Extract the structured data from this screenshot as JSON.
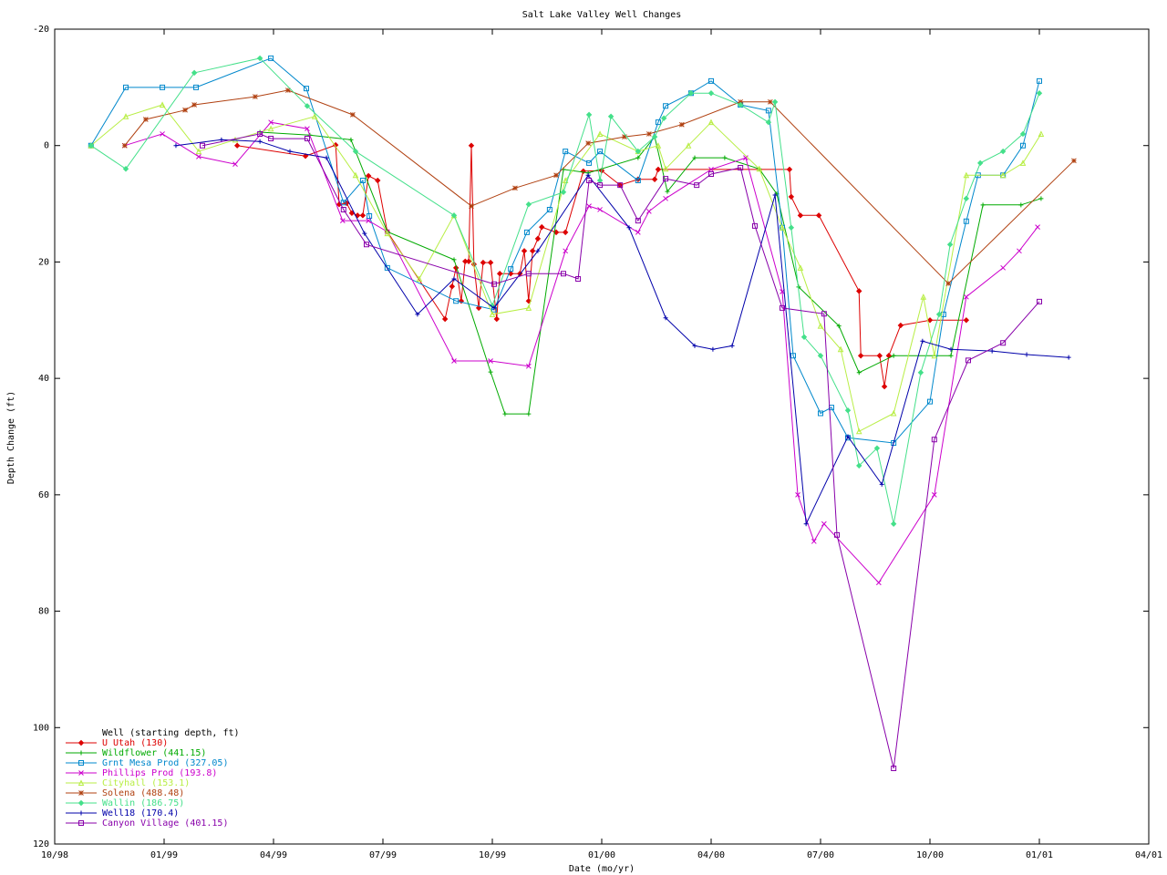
{
  "chart_data": {
    "type": "line",
    "title": "Salt Lake Valley Well Changes",
    "x_label": "Date (mo/yr)",
    "y_label": "Depth Change (ft)",
    "legend_title": "Well (starting depth, ft)",
    "legend_position": "lower-left",
    "xlim": [
      1998.75,
      2001.25
    ],
    "xticks": [
      {
        "value": 1998.75,
        "label": "10/98"
      },
      {
        "value": 1999.0,
        "label": "01/99"
      },
      {
        "value": 1999.25,
        "label": "04/99"
      },
      {
        "value": 1999.5,
        "label": "07/99"
      },
      {
        "value": 1999.75,
        "label": "10/99"
      },
      {
        "value": 2000.0,
        "label": "01/00"
      },
      {
        "value": 2000.25,
        "label": "04/00"
      },
      {
        "value": 2000.5,
        "label": "07/00"
      },
      {
        "value": 2000.75,
        "label": "10/00"
      },
      {
        "value": 2001.0,
        "label": "01/01"
      },
      {
        "value": 2001.25,
        "label": "04/01"
      }
    ],
    "ylim": [
      -20,
      120
    ],
    "y_reversed": true,
    "yticks": [
      -20,
      0,
      20,
      40,
      60,
      80,
      100,
      120
    ],
    "grid": false,
    "series": [
      {
        "name": "U Utah (130)",
        "color": "#dd0000",
        "marker": "diamond",
        "x": [
          1999.167,
          1999.323,
          1999.392,
          1999.4,
          1999.417,
          1999.429,
          1999.442,
          1999.454,
          1999.467,
          1999.488,
          1999.51,
          1999.642,
          1999.658,
          1999.667,
          1999.679,
          1999.688,
          1999.696,
          1999.702,
          1999.708,
          1999.719,
          1999.729,
          1999.746,
          1999.76,
          1999.767,
          1999.792,
          1999.813,
          1999.823,
          1999.833,
          1999.842,
          1999.854,
          1999.863,
          1999.896,
          1999.917,
          1999.958,
          2000.0,
          2000.042,
          2000.083,
          2000.121,
          2000.129,
          2000.429,
          2000.433,
          2000.454,
          2000.496,
          2000.588,
          2000.592,
          2000.635,
          2000.646,
          2000.656,
          2000.683,
          2000.75,
          2000.833
        ],
        "values": [
          0.0,
          1.8,
          -0.1,
          10.1,
          9.9,
          11.6,
          12.0,
          12.0,
          5.2,
          6.0,
          14.8,
          29.8,
          24.2,
          21.0,
          26.7,
          19.9,
          19.9,
          0.0,
          20.4,
          27.9,
          20.1,
          20.1,
          29.8,
          22.0,
          22.0,
          22.0,
          18.1,
          26.7,
          18.1,
          16.0,
          14.0,
          14.9,
          14.9,
          4.4,
          4.3,
          6.8,
          5.8,
          5.8,
          4.1,
          4.1,
          8.8,
          12.0,
          12.0,
          25.0,
          36.1,
          36.1,
          41.4,
          36.1,
          30.9,
          30.0,
          30.0
        ]
      },
      {
        "name": "Wildflower (441.15)",
        "color": "#00aa00",
        "marker": "plus",
        "x": [
          1999.219,
          1999.333,
          1999.427,
          1999.51,
          1999.6625,
          1999.746,
          1999.779,
          1999.833,
          1999.9125,
          1999.969,
          2000.083,
          2000.121,
          2000.15,
          2000.2125,
          2000.281,
          2000.36,
          2000.4,
          2000.45,
          2000.542,
          2000.588,
          2000.667,
          2000.798,
          2000.871,
          2000.958,
          2001.004
        ],
        "values": [
          -2.3,
          -1.8,
          -1.0,
          14.8,
          19.6,
          38.9,
          46.1,
          46.1,
          4.1,
          4.7,
          2.1,
          -1.5,
          7.9,
          2.1,
          2.1,
          4.0,
          8.3,
          24.3,
          31.0,
          39.0,
          36.1,
          36.1,
          10.2,
          10.2,
          9.1
        ]
      },
      {
        "name": "Grnt Mesa Prod (327.05)",
        "color": "#0088cc",
        "marker": "square",
        "x": [
          1998.833,
          1998.9125,
          1998.996,
          1999.073,
          1999.244,
          1999.325,
          1999.41,
          1999.454,
          1999.469,
          1999.51,
          1999.667,
          1999.754,
          1999.792,
          1999.829,
          1999.881,
          1999.917,
          1999.971,
          1999.996,
          2000.083,
          2000.129,
          2000.146,
          2000.204,
          2000.25,
          2000.317,
          2000.381,
          2000.4125,
          2000.4375,
          2000.5,
          2000.525,
          2000.5625,
          2000.667,
          2000.75,
          2000.781,
          2000.833,
          2000.86,
          2000.917,
          2000.9625,
          2001.0
        ],
        "values": [
          0,
          -10.0,
          -10.0,
          -10.0,
          -15.0,
          -9.8,
          9.8,
          6.0,
          12.1,
          21.0,
          26.7,
          28.2,
          21.2,
          14.9,
          11.0,
          1.0,
          3.0,
          1.0,
          6.0,
          -4.0,
          -6.8,
          -9.0,
          -11.1,
          -7.0,
          -6.0,
          14.1,
          36.1,
          46.0,
          45.0,
          50.2,
          51.1,
          44.0,
          29.0,
          13.0,
          5.1,
          5.1,
          0,
          -11.1
        ]
      },
      {
        "name": "Phillips Prod (193.8)",
        "color": "#cc00cc",
        "marker": "cross",
        "x": [
          1998.91,
          1998.996,
          1999.079,
          1999.1625,
          1999.244,
          1999.327,
          1999.408,
          1999.467,
          1999.51,
          1999.6625,
          1999.746,
          1999.833,
          1999.917,
          1999.971,
          1999.996,
          2000.083,
          2000.108,
          2000.146,
          2000.25,
          2000.329,
          2000.4125,
          2000.448,
          2000.485,
          2000.508,
          2000.633,
          2000.76,
          2000.833,
          2000.917,
          2000.954,
          2000.996
        ],
        "values": [
          0,
          -2.0,
          1.9,
          3.2,
          -4.0,
          -2.9,
          12.9,
          12.9,
          14.8,
          37.0,
          37.0,
          37.9,
          18.1,
          10.4,
          11.0,
          14.9,
          11.3,
          9.1,
          4.1,
          2.1,
          25.1,
          60.0,
          68.0,
          65.0,
          75.1,
          60.0,
          26.0,
          21.0,
          18.1,
          14.0
        ]
      },
      {
        "name": "Cityhall (153.1)",
        "color": "#b8ee44",
        "marker": "triangle",
        "x": [
          1998.833,
          1998.9125,
          1998.996,
          1999.079,
          1999.1625,
          1999.244,
          1999.344,
          1999.4375,
          1999.51,
          1999.583,
          1999.6625,
          1999.75,
          1999.833,
          1999.917,
          1999.996,
          2000.083,
          2000.129,
          2000.146,
          2000.198,
          2000.25,
          2000.36,
          2000.4125,
          2000.454,
          2000.5,
          2000.546,
          2000.588,
          2000.667,
          2000.735,
          2000.76,
          2000.833,
          2000.917,
          2000.9625,
          2001.004
        ],
        "values": [
          0,
          -5.0,
          -7.0,
          1.0,
          -1.0,
          -2.9,
          -5.0,
          5.1,
          15.1,
          22.9,
          12.0,
          29.0,
          27.9,
          6.0,
          -2.0,
          1.0,
          0,
          4.0,
          0,
          -4.0,
          4.0,
          14.1,
          21.0,
          31.0,
          35.0,
          49.1,
          46.0,
          26.0,
          36.1,
          5.1,
          5.1,
          3.0,
          -2.0
        ]
      },
      {
        "name": "Solena (488.48)",
        "color": "#b04010",
        "marker": "star",
        "x": [
          1998.91,
          1998.958,
          1999.048,
          1999.069,
          1999.208,
          1999.283,
          1999.431,
          1999.702,
          1999.802,
          1999.896,
          1999.969,
          2000.052,
          2000.108,
          2000.183,
          2000.317,
          2000.385,
          2000.792,
          2001.079
        ],
        "values": [
          0,
          -4.5,
          -6.1,
          -7.0,
          -8.4,
          -9.5,
          -5.3,
          10.4,
          7.3,
          5.1,
          -0.4,
          -1.5,
          -2.0,
          -3.6,
          -7.5,
          -7.5,
          23.7,
          2.6
        ]
      },
      {
        "name": "Wallin (186.75)",
        "color": "#44e08a",
        "marker": "diamond",
        "x": [
          1998.833,
          1998.9125,
          1999.069,
          1999.219,
          1999.327,
          1999.4375,
          1999.6625,
          1999.75,
          1999.833,
          1999.9125,
          1999.971,
          1999.996,
          2000.021,
          2000.083,
          2000.121,
          2000.142,
          2000.204,
          2000.25,
          2000.317,
          2000.381,
          2000.396,
          2000.433,
          2000.4625,
          2000.5,
          2000.5625,
          2000.588,
          2000.629,
          2000.667,
          2000.729,
          2000.771,
          2000.796,
          2000.833,
          2000.865,
          2000.917,
          2000.9625,
          2001.0
        ],
        "values": [
          0,
          4.0,
          -12.5,
          -15.0,
          -6.8,
          1.0,
          12.0,
          27.5,
          10.1,
          8.0,
          -5.3,
          6.0,
          -5.0,
          1.0,
          -1.5,
          -4.7,
          -9.0,
          -9.0,
          -7.0,
          -4.0,
          -7.5,
          14.1,
          32.9,
          36.1,
          45.5,
          55.0,
          52.0,
          65.0,
          39.0,
          29.0,
          17.0,
          9.1,
          3.0,
          1.0,
          -2.0,
          -9.0
        ]
      },
      {
        "name": "Well18 (170.4)",
        "color": "#0000aa",
        "marker": "plus",
        "x": [
          1999.027,
          1999.131,
          1999.219,
          1999.2875,
          1999.371,
          1999.458,
          1999.579,
          1999.6625,
          1999.754,
          1999.854,
          1999.969,
          2000.0625,
          2000.146,
          2000.2125,
          2000.254,
          2000.298,
          2000.396,
          2000.467,
          2000.5625,
          2000.64,
          2000.733,
          2000.798,
          2000.892,
          2000.971,
          2001.067
        ],
        "values": [
          0,
          -1.0,
          -0.7,
          1.0,
          2.1,
          15.1,
          29.0,
          22.9,
          27.9,
          18.1,
          5.1,
          14.1,
          29.6,
          34.4,
          35.0,
          34.4,
          8.5,
          65.0,
          50.0,
          58.2,
          33.6,
          35.0,
          35.3,
          35.9,
          36.4
        ]
      },
      {
        "name": "Canyon Village (401.15)",
        "color": "#8800aa",
        "marker": "square",
        "x": [
          1999.0875,
          1999.219,
          1999.244,
          1999.327,
          1999.41,
          1999.4625,
          1999.754,
          1999.833,
          1999.9125,
          1999.946,
          1999.971,
          1999.996,
          2000.042,
          2000.083,
          2000.146,
          2000.217,
          2000.25,
          2000.317,
          2000.35,
          2000.4125,
          2000.508,
          2000.5375,
          2000.667,
          2000.76,
          2000.8375,
          2000.917,
          2001.0
        ],
        "values": [
          0,
          -2.0,
          -1.2,
          -1.2,
          11.0,
          17.0,
          23.8,
          22.0,
          22.0,
          22.9,
          6.0,
          6.8,
          6.8,
          12.9,
          5.7,
          6.8,
          4.9,
          3.8,
          13.8,
          27.9,
          28.9,
          66.9,
          107.0,
          50.5,
          36.9,
          33.9,
          26.8
        ]
      }
    ]
  }
}
